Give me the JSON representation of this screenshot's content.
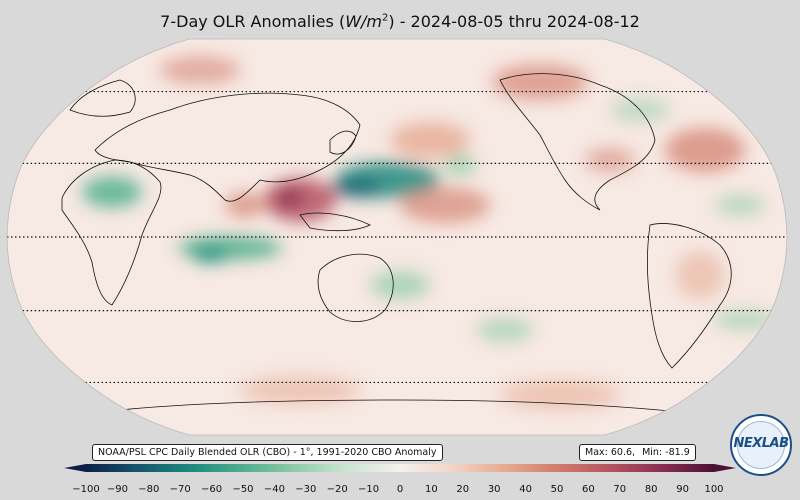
{
  "title": {
    "prefix": "7-Day OLR Anomalies (",
    "unit_w": "W/m",
    "unit_exp": "2",
    "suffix": ") - 2024-08-05 thru 2024-08-12"
  },
  "source_label": "NOAA/PSL CPC Daily Blended OLR (CBO) - 1°, 1991-2020 CBO Anomaly",
  "stats": {
    "max_label": "Max: 60.6,",
    "min_label": "Min: -81.9"
  },
  "colorbar": {
    "ticks": [
      "−100",
      "−90",
      "−80",
      "−70",
      "−60",
      "−50",
      "−40",
      "−30",
      "−20",
      "−10",
      "0",
      "10",
      "20",
      "30",
      "40",
      "50",
      "60",
      "70",
      "80",
      "90",
      "100"
    ],
    "range": [
      -100,
      100
    ],
    "extend": "both",
    "colors_negative": [
      "#0b1f47",
      "#14566e",
      "#1c8a7e",
      "#4fae8c",
      "#8fcca7",
      "#cbe6d3",
      "#f5f1ec"
    ],
    "colors_positive": [
      "#f5f1ec",
      "#f3d5c6",
      "#e6aa92",
      "#d27c6b",
      "#b65461",
      "#8a2f52",
      "#4a1035"
    ]
  },
  "map": {
    "projection": "Robinson",
    "central_longitude": 150,
    "graticule_latitudes": [
      -60,
      -30,
      0,
      30,
      60
    ],
    "background": "#f7e9e3",
    "anomaly_features": [
      {
        "region": "Western Pacific / Philippine Sea",
        "sign": "negative",
        "strength": 0.9
      },
      {
        "region": "Central Africa",
        "sign": "negative",
        "strength": 0.7
      },
      {
        "region": "Indian Ocean south of equator",
        "sign": "negative",
        "strength": 0.75
      },
      {
        "region": "Mainland Southeast Asia",
        "sign": "positive",
        "strength": 0.9
      },
      {
        "region": "Northeast Pacific / Alaska",
        "sign": "positive",
        "strength": 0.55
      },
      {
        "region": "Western North Atlantic",
        "sign": "positive",
        "strength": 0.55
      },
      {
        "region": "Central Pacific",
        "sign": "positive",
        "strength": 0.4
      },
      {
        "region": "Southern Ocean south of Australia",
        "sign": "positive",
        "strength": 0.45
      }
    ]
  },
  "logo": {
    "text": "NEXLAB"
  }
}
